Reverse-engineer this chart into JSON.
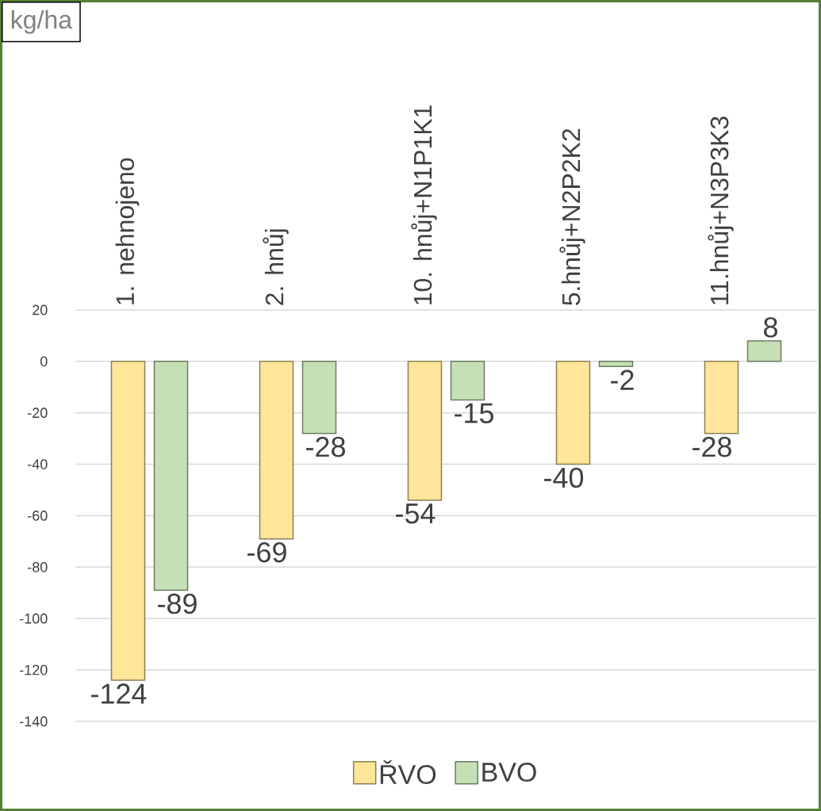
{
  "chart_data": {
    "type": "bar",
    "ylabel": "kg/ha",
    "categories": [
      "1. nehnojeno",
      "2. hnůj",
      "10. hnůj+N1P1K1",
      "5.hnůj+N2P2K2",
      "11.hnůj+N3P3K3"
    ],
    "series": [
      {
        "name": "ŘVO",
        "color": "#ffe699",
        "values": [
          -124,
          -69,
          -54,
          -40,
          -28
        ]
      },
      {
        "name": "BVO",
        "color": "#c5e0b4",
        "values": [
          -89,
          -28,
          -15,
          -2,
          8
        ]
      }
    ],
    "ylim": [
      -140,
      20
    ],
    "yticks": [
      -140,
      -120,
      -100,
      -80,
      -60,
      -40,
      -20,
      0,
      20
    ],
    "grid": "y",
    "legend": "bottom",
    "data_labels": true
  }
}
